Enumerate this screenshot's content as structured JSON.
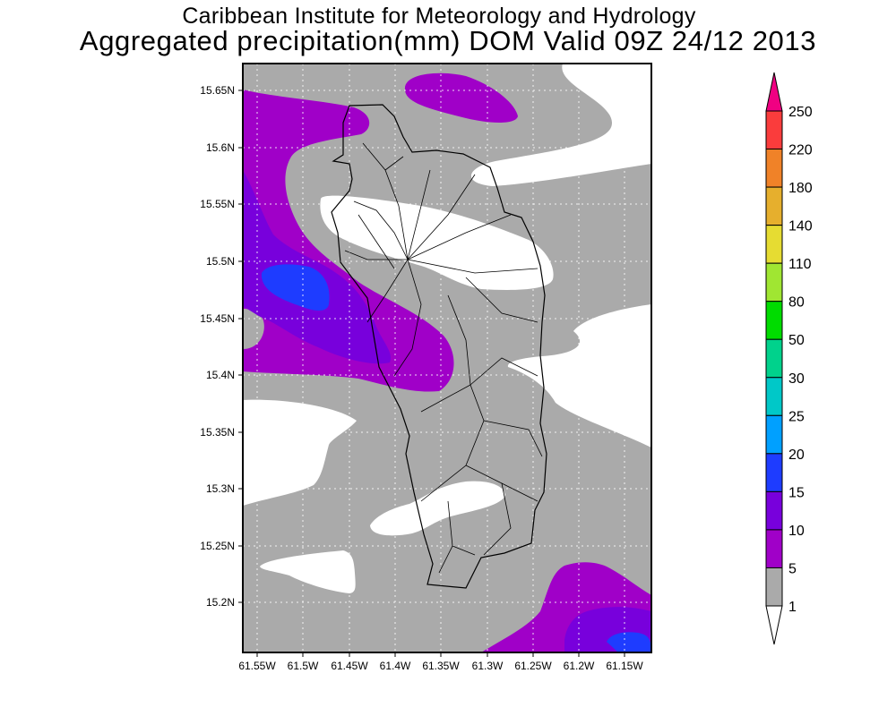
{
  "title": {
    "line1": "Caribbean Institute for Meteorology and Hydrology",
    "line2": "Aggregated precipitation(mm) DOM Valid 09Z 24/12 2013"
  },
  "map": {
    "lat_ticks": [
      "15.65N",
      "15.6N",
      "15.55N",
      "15.5N",
      "15.45N",
      "15.4N",
      "15.35N",
      "15.3N",
      "15.25N",
      "15.2N"
    ],
    "lon_ticks": [
      "61.55W",
      "61.5W",
      "61.45W",
      "61.4W",
      "61.35W",
      "61.3W",
      "61.25W",
      "61.2W",
      "61.15W"
    ],
    "colors": {
      "lt1": "#ffffff",
      "1-5": "#aaaaaa",
      "5-10": "#a000c8",
      "10-15": "#7800dc",
      "15-20": "#1e3cff"
    }
  },
  "colorbar": {
    "labels": [
      "250",
      "220",
      "180",
      "140",
      "110",
      "80",
      "50",
      "30",
      "25",
      "20",
      "15",
      "10",
      "5",
      "1"
    ],
    "colors": [
      "#fa3c3c",
      "#f08228",
      "#e6af2d",
      "#e6dc32",
      "#a0e632",
      "#00dc00",
      "#00d28c",
      "#00c8c8",
      "#00a0ff",
      "#1e3cff",
      "#7800dc",
      "#a000c8",
      "#aaaaaa"
    ],
    "over_color": "#f00082",
    "under_color": "#ffffff"
  }
}
